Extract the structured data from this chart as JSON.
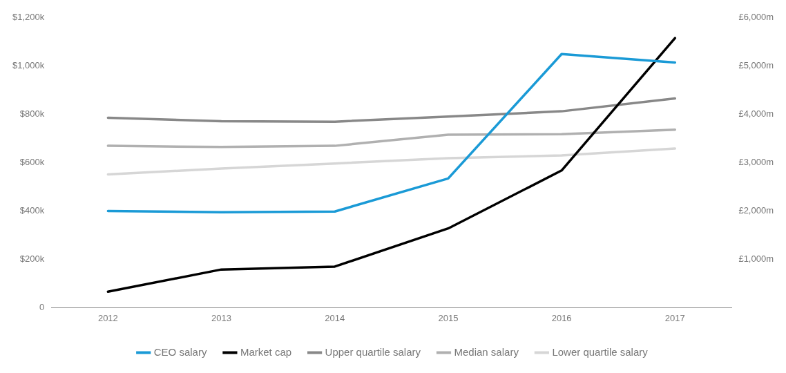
{
  "chart_data": {
    "type": "line",
    "categories": [
      "2012",
      "2013",
      "2014",
      "2015",
      "2016",
      "2017"
    ],
    "series": [
      {
        "name": "CEO salary",
        "color": "#1a9ad6",
        "values": [
          400,
          395,
          398,
          535,
          1050,
          1015
        ]
      },
      {
        "name": "Market cap",
        "color": "#000000",
        "axis": "y2",
        "values": [
          330,
          790,
          850,
          1640,
          2840,
          5580
        ]
      },
      {
        "name": "Upper quartile salary",
        "color": "#888888",
        "values": [
          786,
          772,
          770,
          791,
          813,
          866
        ]
      },
      {
        "name": "Median salary",
        "color": "#b0b0b0",
        "values": [
          670,
          665,
          670,
          716,
          718,
          737
        ]
      },
      {
        "name": "Lower quartile salary",
        "color": "#d6d6d6",
        "values": [
          552,
          576,
          597,
          619,
          630,
          659
        ]
      }
    ],
    "ylim": [
      0,
      1200
    ],
    "yticks": [
      {
        "value": 0,
        "label": "0"
      },
      {
        "value": 200,
        "label": "$200k"
      },
      {
        "value": 400,
        "label": "$400k"
      },
      {
        "value": 600,
        "label": "$600k"
      },
      {
        "value": 800,
        "label": "$800k"
      },
      {
        "value": 1000,
        "label": "$1,000k"
      },
      {
        "value": 1200,
        "label": "$1,200k"
      }
    ],
    "y2lim": [
      0,
      6000
    ],
    "y2ticks": [
      {
        "value": 1000,
        "label": "£1,000m"
      },
      {
        "value": 2000,
        "label": "£2,000m"
      },
      {
        "value": 3000,
        "label": "£3,000m"
      },
      {
        "value": 4000,
        "label": "£4,000m"
      },
      {
        "value": 5000,
        "label": "£5,000m"
      },
      {
        "value": 6000,
        "label": "£6,000m"
      }
    ],
    "grid": false,
    "legend": "bottom",
    "marker": "none",
    "line_style": "solid"
  }
}
